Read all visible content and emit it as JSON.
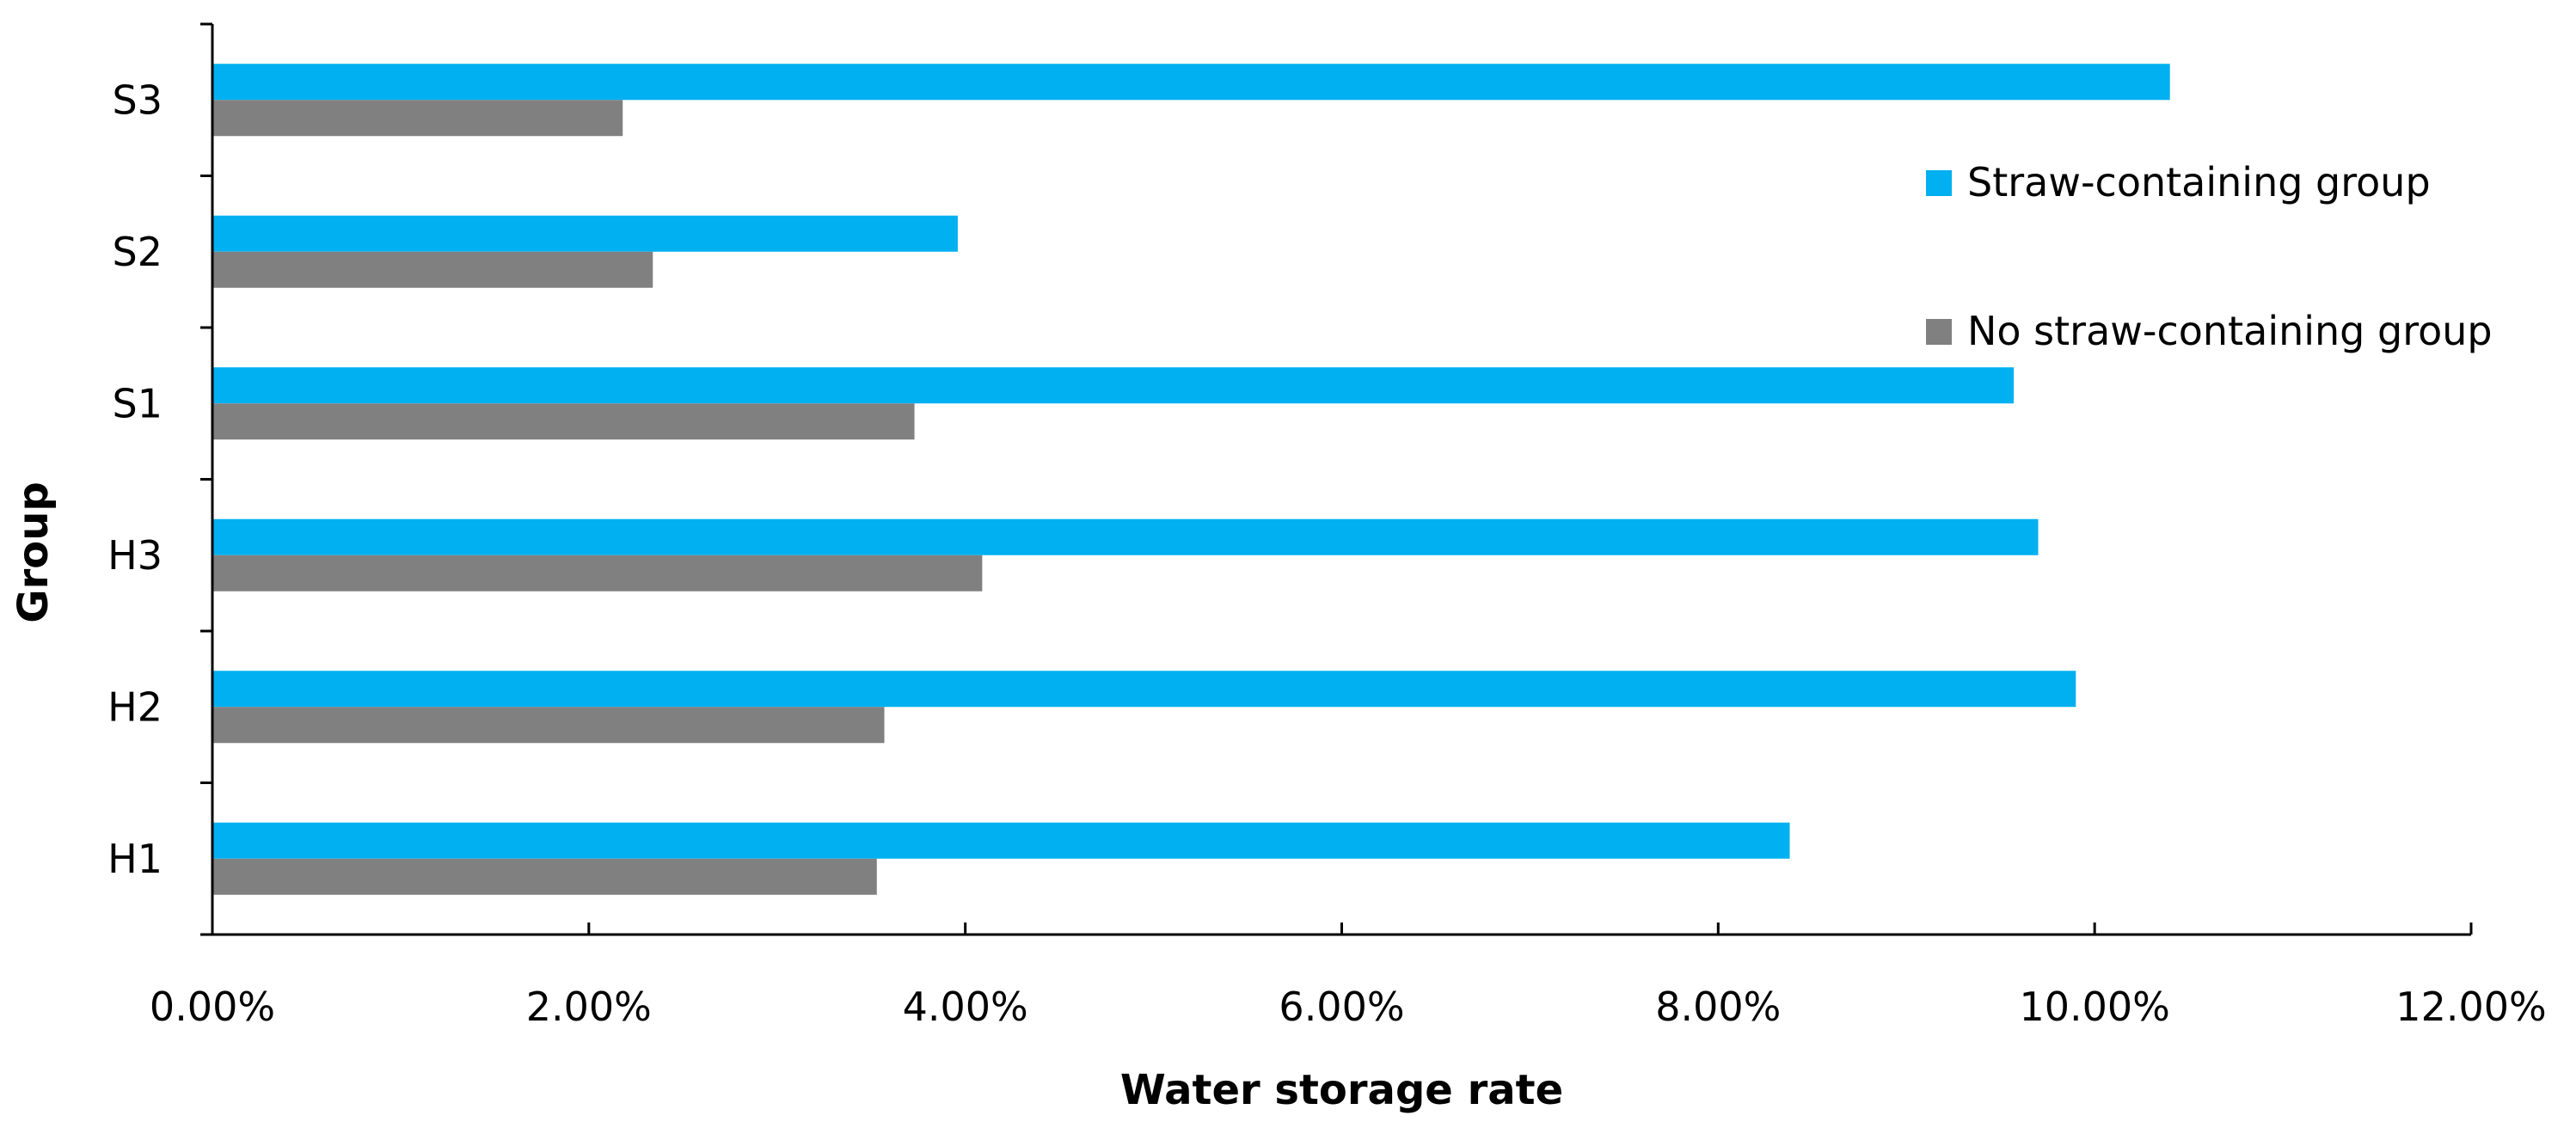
{
  "chart_data": {
    "type": "bar",
    "orientation": "horizontal",
    "title": "",
    "xlabel": "Water storage rate",
    "ylabel": "Group",
    "categories": [
      "H1",
      "H2",
      "H3",
      "S1",
      "S2",
      "S3"
    ],
    "series": [
      {
        "name": "Straw-containing group",
        "color": "#00B0F0",
        "values": [
          0.0838,
          0.099,
          0.097,
          0.0957,
          0.0396,
          0.104
        ]
      },
      {
        "name": "No straw-containing group",
        "color": "#808080",
        "values": [
          0.0353,
          0.0357,
          0.0409,
          0.0373,
          0.0234,
          0.0218
        ]
      }
    ],
    "xlim": [
      0,
      0.12
    ],
    "x_ticks": [
      0,
      0.02,
      0.04,
      0.06,
      0.08,
      0.1,
      0.12
    ],
    "x_tick_labels": [
      "0.00%",
      "2.00%",
      "4.00%",
      "6.00%",
      "8.00%",
      "10.00%",
      "12.00%"
    ],
    "grid": false,
    "legend_position": "top-right"
  }
}
